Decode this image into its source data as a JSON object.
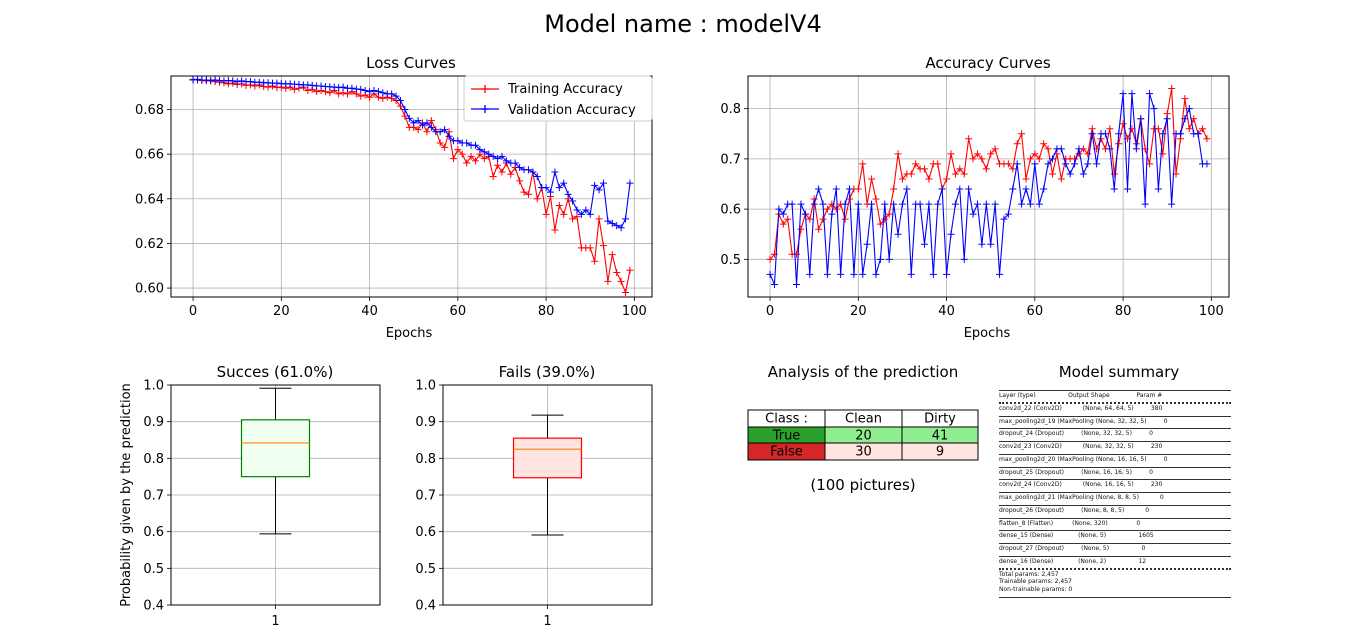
{
  "figure": {
    "title": "Model name : modelV4"
  },
  "chart_data": [
    {
      "type": "line",
      "title": "Loss Curves",
      "xlabel": "Epochs",
      "ylabel": "",
      "xlim": [
        -5,
        104
      ],
      "ylim": [
        0.596,
        0.695
      ],
      "x_ticks": [
        0,
        20,
        40,
        60,
        80,
        100
      ],
      "y_ticks": [
        0.6,
        0.62,
        0.64,
        0.66,
        0.68
      ],
      "grid": true,
      "legend": "top-right",
      "series": [
        {
          "name": "Training Accuracy",
          "color": "#ff0000",
          "values": [
            0.6935,
            0.6932,
            0.693,
            0.6928,
            0.6928,
            0.6925,
            0.6922,
            0.692,
            0.6915,
            0.6918,
            0.6912,
            0.6915,
            0.6908,
            0.691,
            0.6905,
            0.691,
            0.6903,
            0.69,
            0.6905,
            0.6898,
            0.69,
            0.6895,
            0.69,
            0.689,
            0.6895,
            0.69,
            0.6885,
            0.689,
            0.688,
            0.6885,
            0.688,
            0.6875,
            0.6885,
            0.687,
            0.6875,
            0.687,
            0.688,
            0.687,
            0.686,
            0.6865,
            0.6855,
            0.687,
            0.6855,
            0.685,
            0.6855,
            0.685,
            0.684,
            0.6815,
            0.677,
            0.672,
            0.672,
            0.671,
            0.674,
            0.67,
            0.675,
            0.671,
            0.665,
            0.663,
            0.67,
            0.658,
            0.662,
            0.66,
            0.656,
            0.659,
            0.657,
            0.66,
            0.658,
            0.659,
            0.65,
            0.655,
            0.652,
            0.656,
            0.651,
            0.654,
            0.648,
            0.643,
            0.642,
            0.652,
            0.64,
            0.645,
            0.633,
            0.641,
            0.626,
            0.637,
            0.633,
            0.64,
            0.631,
            0.632,
            0.618,
            0.618,
            0.618,
            0.612,
            0.631,
            0.619,
            0.603,
            0.615,
            0.607,
            0.603,
            0.598,
            0.608
          ]
        },
        {
          "name": "Validation Accuracy",
          "color": "#0000ff",
          "values": [
            0.6932,
            0.6935,
            0.6932,
            0.6932,
            0.693,
            0.6932,
            0.693,
            0.6928,
            0.693,
            0.6928,
            0.6925,
            0.6928,
            0.6925,
            0.6925,
            0.6922,
            0.6922,
            0.692,
            0.692,
            0.6918,
            0.6918,
            0.6916,
            0.6915,
            0.6915,
            0.6913,
            0.6912,
            0.691,
            0.691,
            0.6908,
            0.6906,
            0.6905,
            0.6903,
            0.6902,
            0.69,
            0.6898,
            0.69,
            0.6895,
            0.6895,
            0.6892,
            0.689,
            0.6885,
            0.688,
            0.6885,
            0.688,
            0.6875,
            0.687,
            0.687,
            0.686,
            0.684,
            0.68,
            0.676,
            0.674,
            0.675,
            0.673,
            0.674,
            0.672,
            0.67,
            0.67,
            0.671,
            0.668,
            0.666,
            0.666,
            0.665,
            0.665,
            0.664,
            0.664,
            0.662,
            0.661,
            0.66,
            0.659,
            0.658,
            0.659,
            0.657,
            0.656,
            0.656,
            0.654,
            0.653,
            0.653,
            0.652,
            0.65,
            0.645,
            0.645,
            0.643,
            0.652,
            0.645,
            0.647,
            0.642,
            0.639,
            0.635,
            0.633,
            0.635,
            0.633,
            0.646,
            0.644,
            0.647,
            0.63,
            0.629,
            0.628,
            0.627,
            0.631,
            0.647
          ]
        }
      ]
    },
    {
      "type": "line",
      "title": "Accuracy Curves",
      "xlabel": "Epochs",
      "ylabel": "",
      "xlim": [
        -5,
        104
      ],
      "ylim": [
        0.425,
        0.865
      ],
      "x_ticks": [
        0,
        20,
        40,
        60,
        80,
        100
      ],
      "y_ticks": [
        0.5,
        0.6,
        0.7,
        0.8
      ],
      "grid": true,
      "series": [
        {
          "color": "#ff0000",
          "values": [
            0.5,
            0.51,
            0.59,
            0.57,
            0.58,
            0.51,
            0.51,
            0.56,
            0.59,
            0.58,
            0.62,
            0.56,
            0.58,
            0.6,
            0.61,
            0.6,
            0.61,
            0.58,
            0.62,
            0.64,
            0.64,
            0.69,
            0.61,
            0.66,
            0.62,
            0.57,
            0.58,
            0.59,
            0.64,
            0.71,
            0.66,
            0.67,
            0.67,
            0.69,
            0.68,
            0.68,
            0.66,
            0.69,
            0.69,
            0.64,
            0.66,
            0.71,
            0.67,
            0.68,
            0.67,
            0.74,
            0.7,
            0.71,
            0.7,
            0.68,
            0.71,
            0.72,
            0.69,
            0.69,
            0.69,
            0.68,
            0.73,
            0.75,
            0.66,
            0.7,
            0.71,
            0.7,
            0.73,
            0.72,
            0.67,
            0.71,
            0.66,
            0.7,
            0.7,
            0.7,
            0.71,
            0.72,
            0.71,
            0.76,
            0.72,
            0.74,
            0.72,
            0.76,
            0.67,
            0.73,
            0.77,
            0.74,
            0.76,
            0.73,
            0.78,
            0.72,
            0.69,
            0.76,
            0.76,
            0.71,
            0.79,
            0.84,
            0.67,
            0.74,
            0.82,
            0.76,
            0.78,
            0.75,
            0.76,
            0.74
          ]
        },
        {
          "color": "#0000ff",
          "values": [
            0.47,
            0.45,
            0.6,
            0.59,
            0.61,
            0.61,
            0.45,
            0.61,
            0.59,
            0.47,
            0.61,
            0.64,
            0.61,
            0.47,
            0.59,
            0.64,
            0.47,
            0.61,
            0.64,
            0.47,
            0.61,
            0.47,
            0.53,
            0.61,
            0.47,
            0.5,
            0.61,
            0.5,
            0.61,
            0.55,
            0.61,
            0.64,
            0.47,
            0.61,
            0.61,
            0.53,
            0.61,
            0.47,
            0.61,
            0.64,
            0.47,
            0.55,
            0.61,
            0.64,
            0.5,
            0.64,
            0.59,
            0.61,
            0.53,
            0.61,
            0.53,
            0.61,
            0.47,
            0.58,
            0.59,
            0.64,
            0.69,
            0.61,
            0.64,
            0.61,
            0.69,
            0.61,
            0.64,
            0.69,
            0.7,
            0.72,
            0.72,
            0.69,
            0.67,
            0.69,
            0.72,
            0.67,
            0.69,
            0.75,
            0.69,
            0.75,
            0.75,
            0.72,
            0.64,
            0.75,
            0.83,
            0.64,
            0.83,
            0.72,
            0.78,
            0.61,
            0.83,
            0.8,
            0.64,
            0.75,
            0.78,
            0.61,
            0.75,
            0.75,
            0.78,
            0.8,
            0.75,
            0.75,
            0.69,
            0.69
          ]
        }
      ]
    },
    {
      "type": "box",
      "title": "Succes (61.0%)",
      "ylabel": "Probability given by the prediction",
      "categories": [
        "1"
      ],
      "ylim": [
        0.4,
        1.0
      ],
      "y_ticks": [
        0.4,
        0.5,
        0.6,
        0.7,
        0.8,
        0.9,
        1.0
      ],
      "grid": true,
      "whisker_low": 0.594,
      "q1": 0.75,
      "median": 0.842,
      "q3": 0.905,
      "whisker_high": 0.991,
      "edge_color": "#008000",
      "face_color": "#f0fff0",
      "median_color": "#ff7f0e"
    },
    {
      "type": "box",
      "title": "Fails (39.0%)",
      "categories": [
        "1"
      ],
      "ylim": [
        0.4,
        1.0
      ],
      "y_ticks": [
        0.4,
        0.5,
        0.6,
        0.7,
        0.8,
        0.9,
        1.0
      ],
      "grid": true,
      "whisker_low": 0.591,
      "q1": 0.747,
      "median": 0.825,
      "q3": 0.855,
      "whisker_high": 0.918,
      "edge_color": "#ff0000",
      "face_color": "#ffe4e1",
      "median_color": "#ff7f0e"
    },
    {
      "type": "table",
      "title": "Analysis of the prediction",
      "columns": [
        "Class :",
        "Clean",
        "Dirty"
      ],
      "rows": [
        {
          "label": "True",
          "values": [
            20,
            41
          ],
          "label_color": "#2ca02c",
          "cell_color": "#90ee90"
        },
        {
          "label": "False",
          "values": [
            30,
            9
          ],
          "label_color": "#d62728",
          "cell_color": "#ffe4e1"
        }
      ],
      "footnote": "(100 pictures)"
    }
  ],
  "model_summary": {
    "title": "Model summary",
    "header": "Layer (type)                 Output Shape              Param #",
    "layers": [
      "conv2d_22 (Conv2D)           (None, 64, 64, 5)         380",
      "max_pooling2d_19 (MaxPooling (None, 32, 32, 5)         0",
      "dropout_24 (Dropout)         (None, 32, 32, 5)         0",
      "conv2d_23 (Conv2D)           (None, 32, 32, 5)         230",
      "max_pooling2d_20 (MaxPooling (None, 16, 16, 5)         0",
      "dropout_25 (Dropout)         (None, 16, 16, 5)         0",
      "conv2d_24 (Conv2D)           (None, 16, 16, 5)         230",
      "max_pooling2d_21 (MaxPooling (None, 8, 8, 5)           0",
      "dropout_26 (Dropout)         (None, 8, 8, 5)           0",
      "flatten_8 (Flatten)          (None, 320)               0",
      "dense_15 (Dense)             (None, 5)                 1605",
      "dropout_27 (Dropout)         (None, 5)                 0",
      "dense_16 (Dense)             (None, 2)                 12"
    ],
    "footer": [
      "Total params: 2,457",
      "Trainable params: 2,457",
      "Non-trainable params: 0"
    ]
  }
}
